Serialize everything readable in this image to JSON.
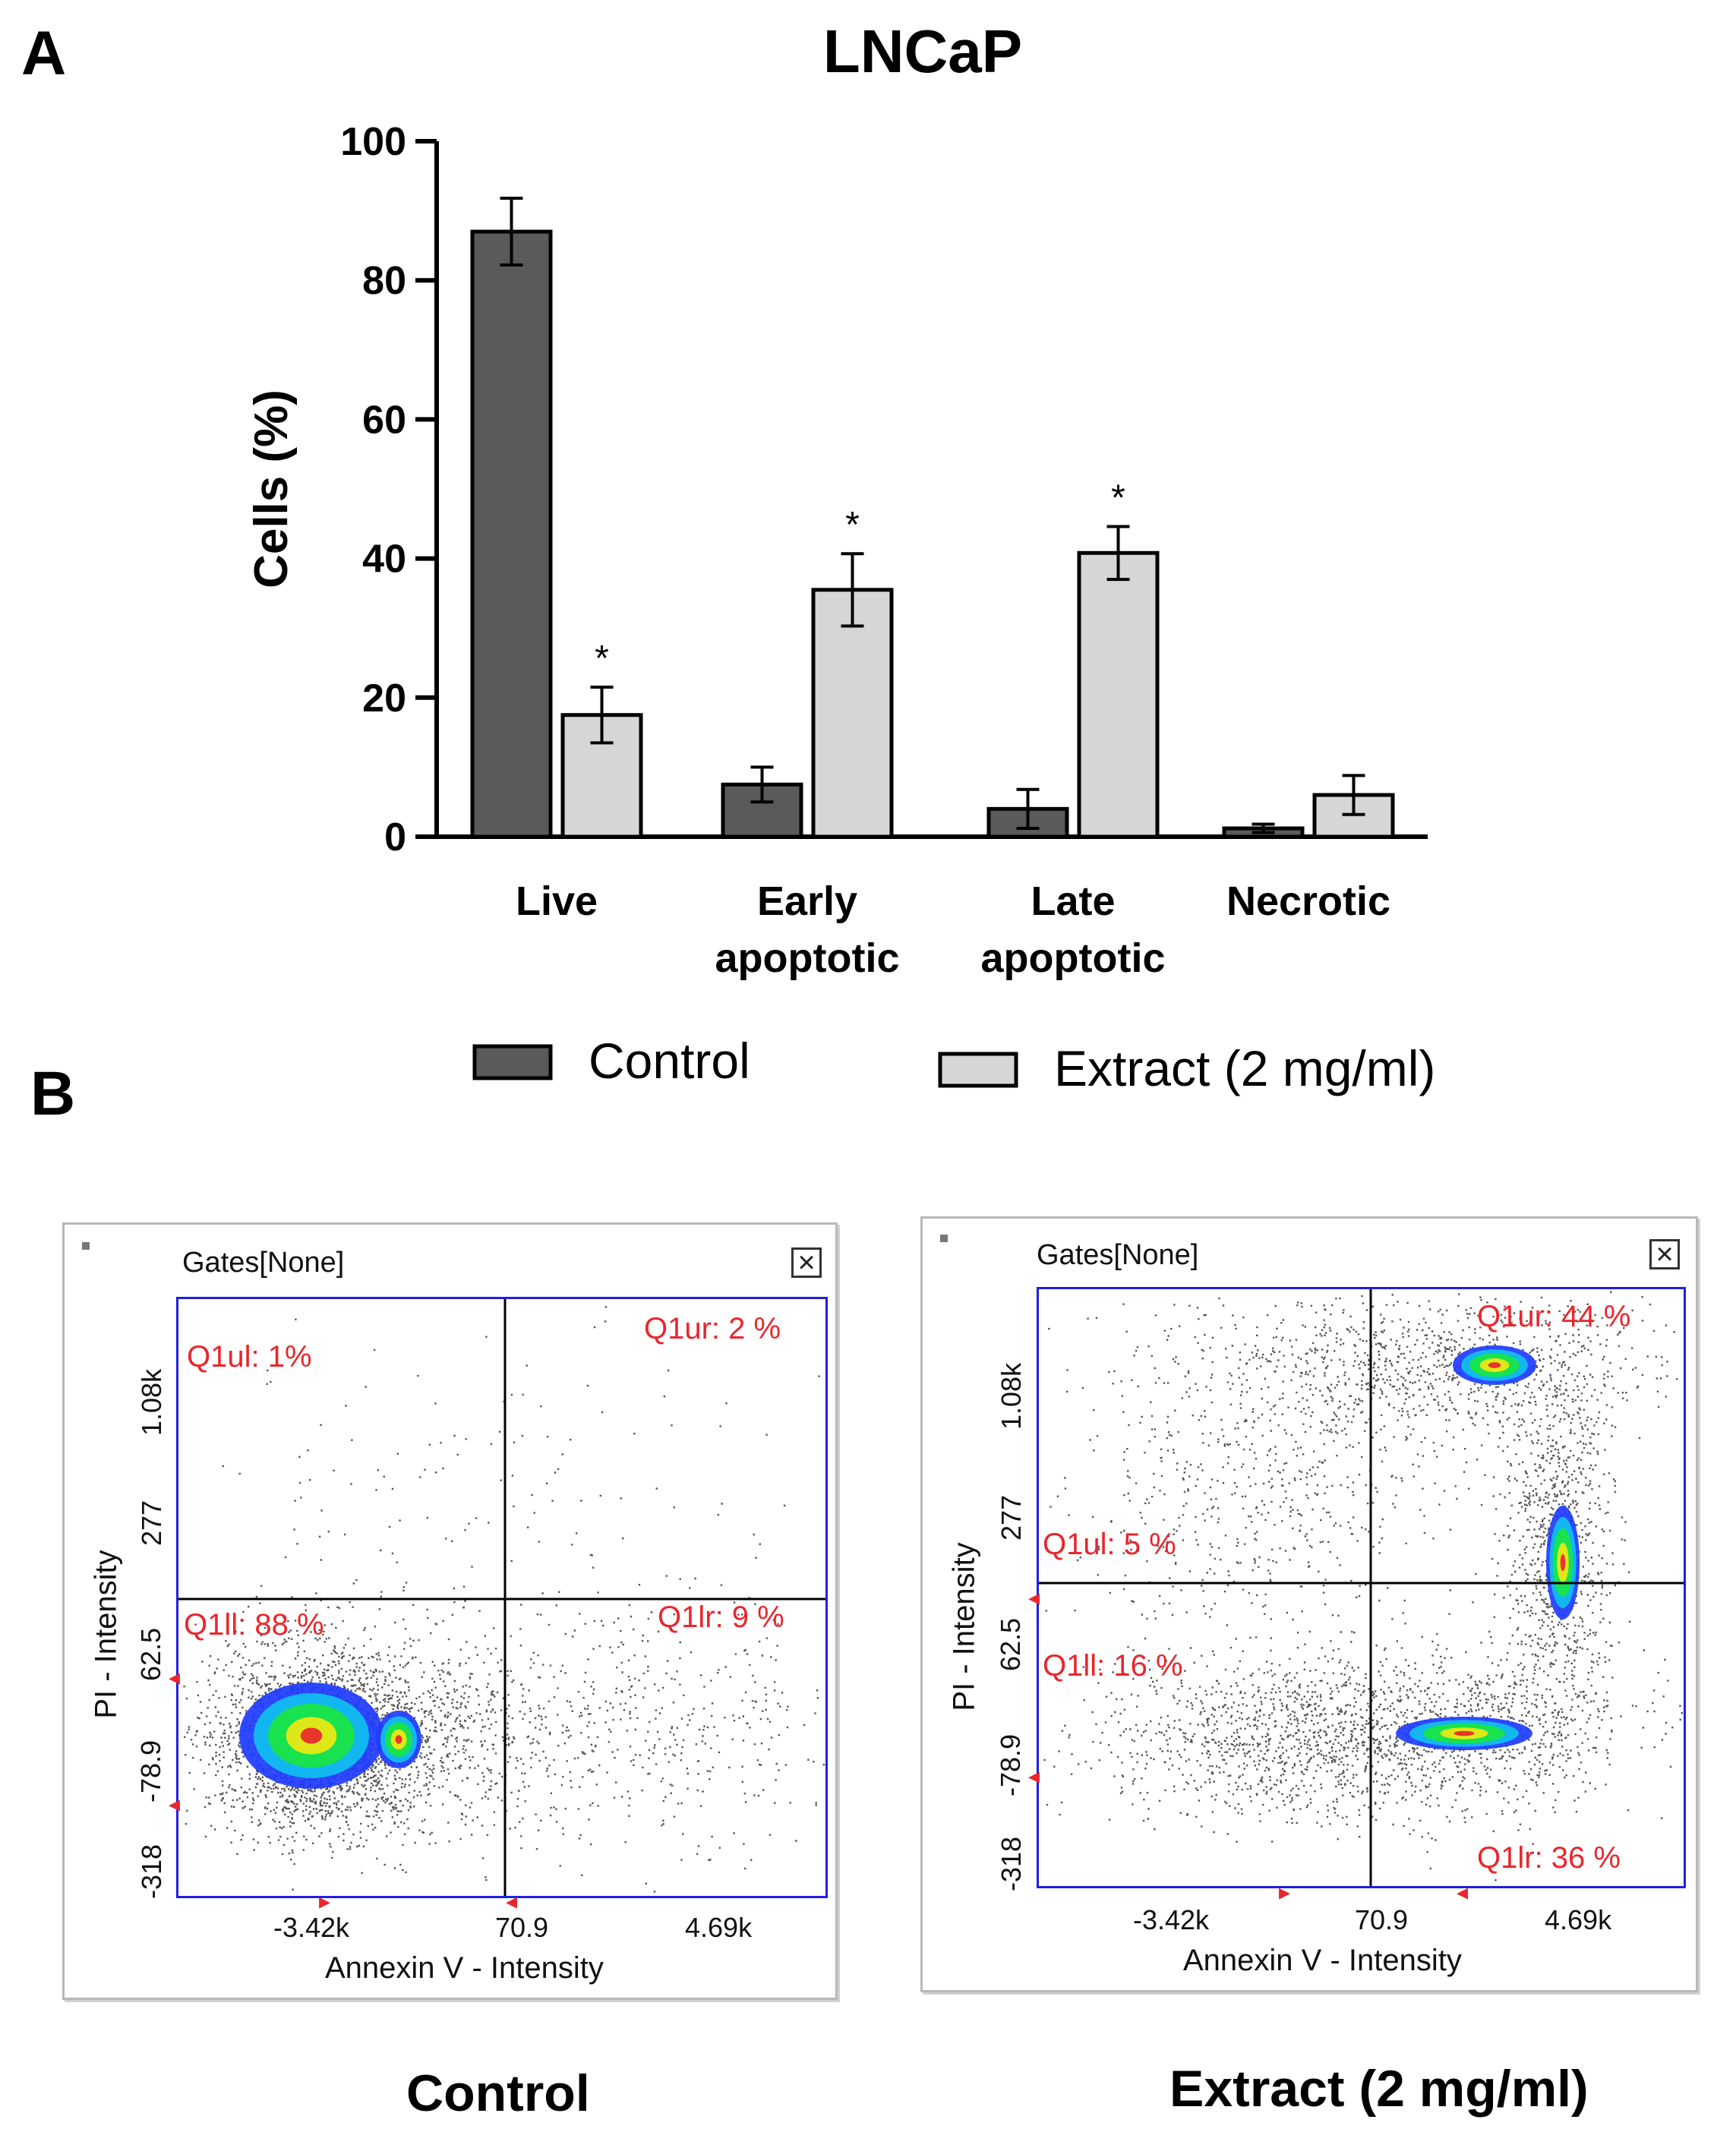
{
  "panel_a_letter": "A",
  "panel_b_letter": "B",
  "chart_data": [
    {
      "type": "bar",
      "title": "LNCaP",
      "ylabel": "Cells (%)",
      "xlabel": "",
      "ylim": [
        0,
        100
      ],
      "yticks": [
        0,
        20,
        40,
        60,
        80,
        100
      ],
      "categories": [
        "Live",
        "Early apoptotic",
        "Late apoptotic",
        "Necrotic"
      ],
      "category_lines": [
        [
          "Live"
        ],
        [
          "Early",
          "apoptotic"
        ],
        [
          "Late",
          "apoptotic"
        ],
        [
          "Necrotic"
        ]
      ],
      "series": [
        {
          "name": "Control",
          "color": "#5a5a5a",
          "values": [
            87,
            7.5,
            4,
            1.2
          ],
          "errors": [
            4.8,
            2.5,
            2.8,
            0.6
          ]
        },
        {
          "name": "Extract (2 mg/ml)",
          "color": "#d6d6d6",
          "values": [
            17.5,
            35.5,
            40.8,
            6
          ],
          "errors": [
            4,
            5.2,
            3.8,
            2.8
          ]
        }
      ],
      "significance": [
        {
          "series": "Extract (2 mg/ml)",
          "category": "Live",
          "mark": "*"
        },
        {
          "series": "Extract (2 mg/ml)",
          "category": "Early apoptotic",
          "mark": "*"
        },
        {
          "series": "Extract (2 mg/ml)",
          "category": "Late apoptotic",
          "mark": "*"
        }
      ],
      "legend": [
        "Control",
        "Extract (2 mg/ml)"
      ],
      "legend_position": "bottom"
    },
    {
      "type": "scatter",
      "title": "Control",
      "gates_label": "Gates[None]",
      "xlabel": "Annexin V - Intensity",
      "ylabel": "PI - Intensity",
      "xticks": [
        "-3.42k",
        "70.9",
        "4.69k"
      ],
      "yticks": [
        "-318",
        "-78.9",
        "62.5",
        "277",
        "1.08k"
      ],
      "quadrants": {
        "ul": "Q1ul: 1%",
        "ur": "Q1ur: 2 %",
        "ll": "Q1ll: 88 %",
        "lr": "Q1lr: 9 %"
      }
    },
    {
      "type": "scatter",
      "title": "Extract (2 mg/ml)",
      "gates_label": "Gates[None]",
      "xlabel": "Annexin V - Intensity",
      "ylabel": "PI - Intensity",
      "xticks": [
        "-3.42k",
        "70.9",
        "4.69k"
      ],
      "yticks": [
        "-318",
        "-78.9",
        "62.5",
        "277",
        "1.08k"
      ],
      "quadrants": {
        "ul": "Q1ul: 5 %",
        "ur": "Q1ur: 44 %",
        "ll": "Q1ll: 16 %",
        "lr": "Q1lr: 36 %"
      }
    }
  ]
}
